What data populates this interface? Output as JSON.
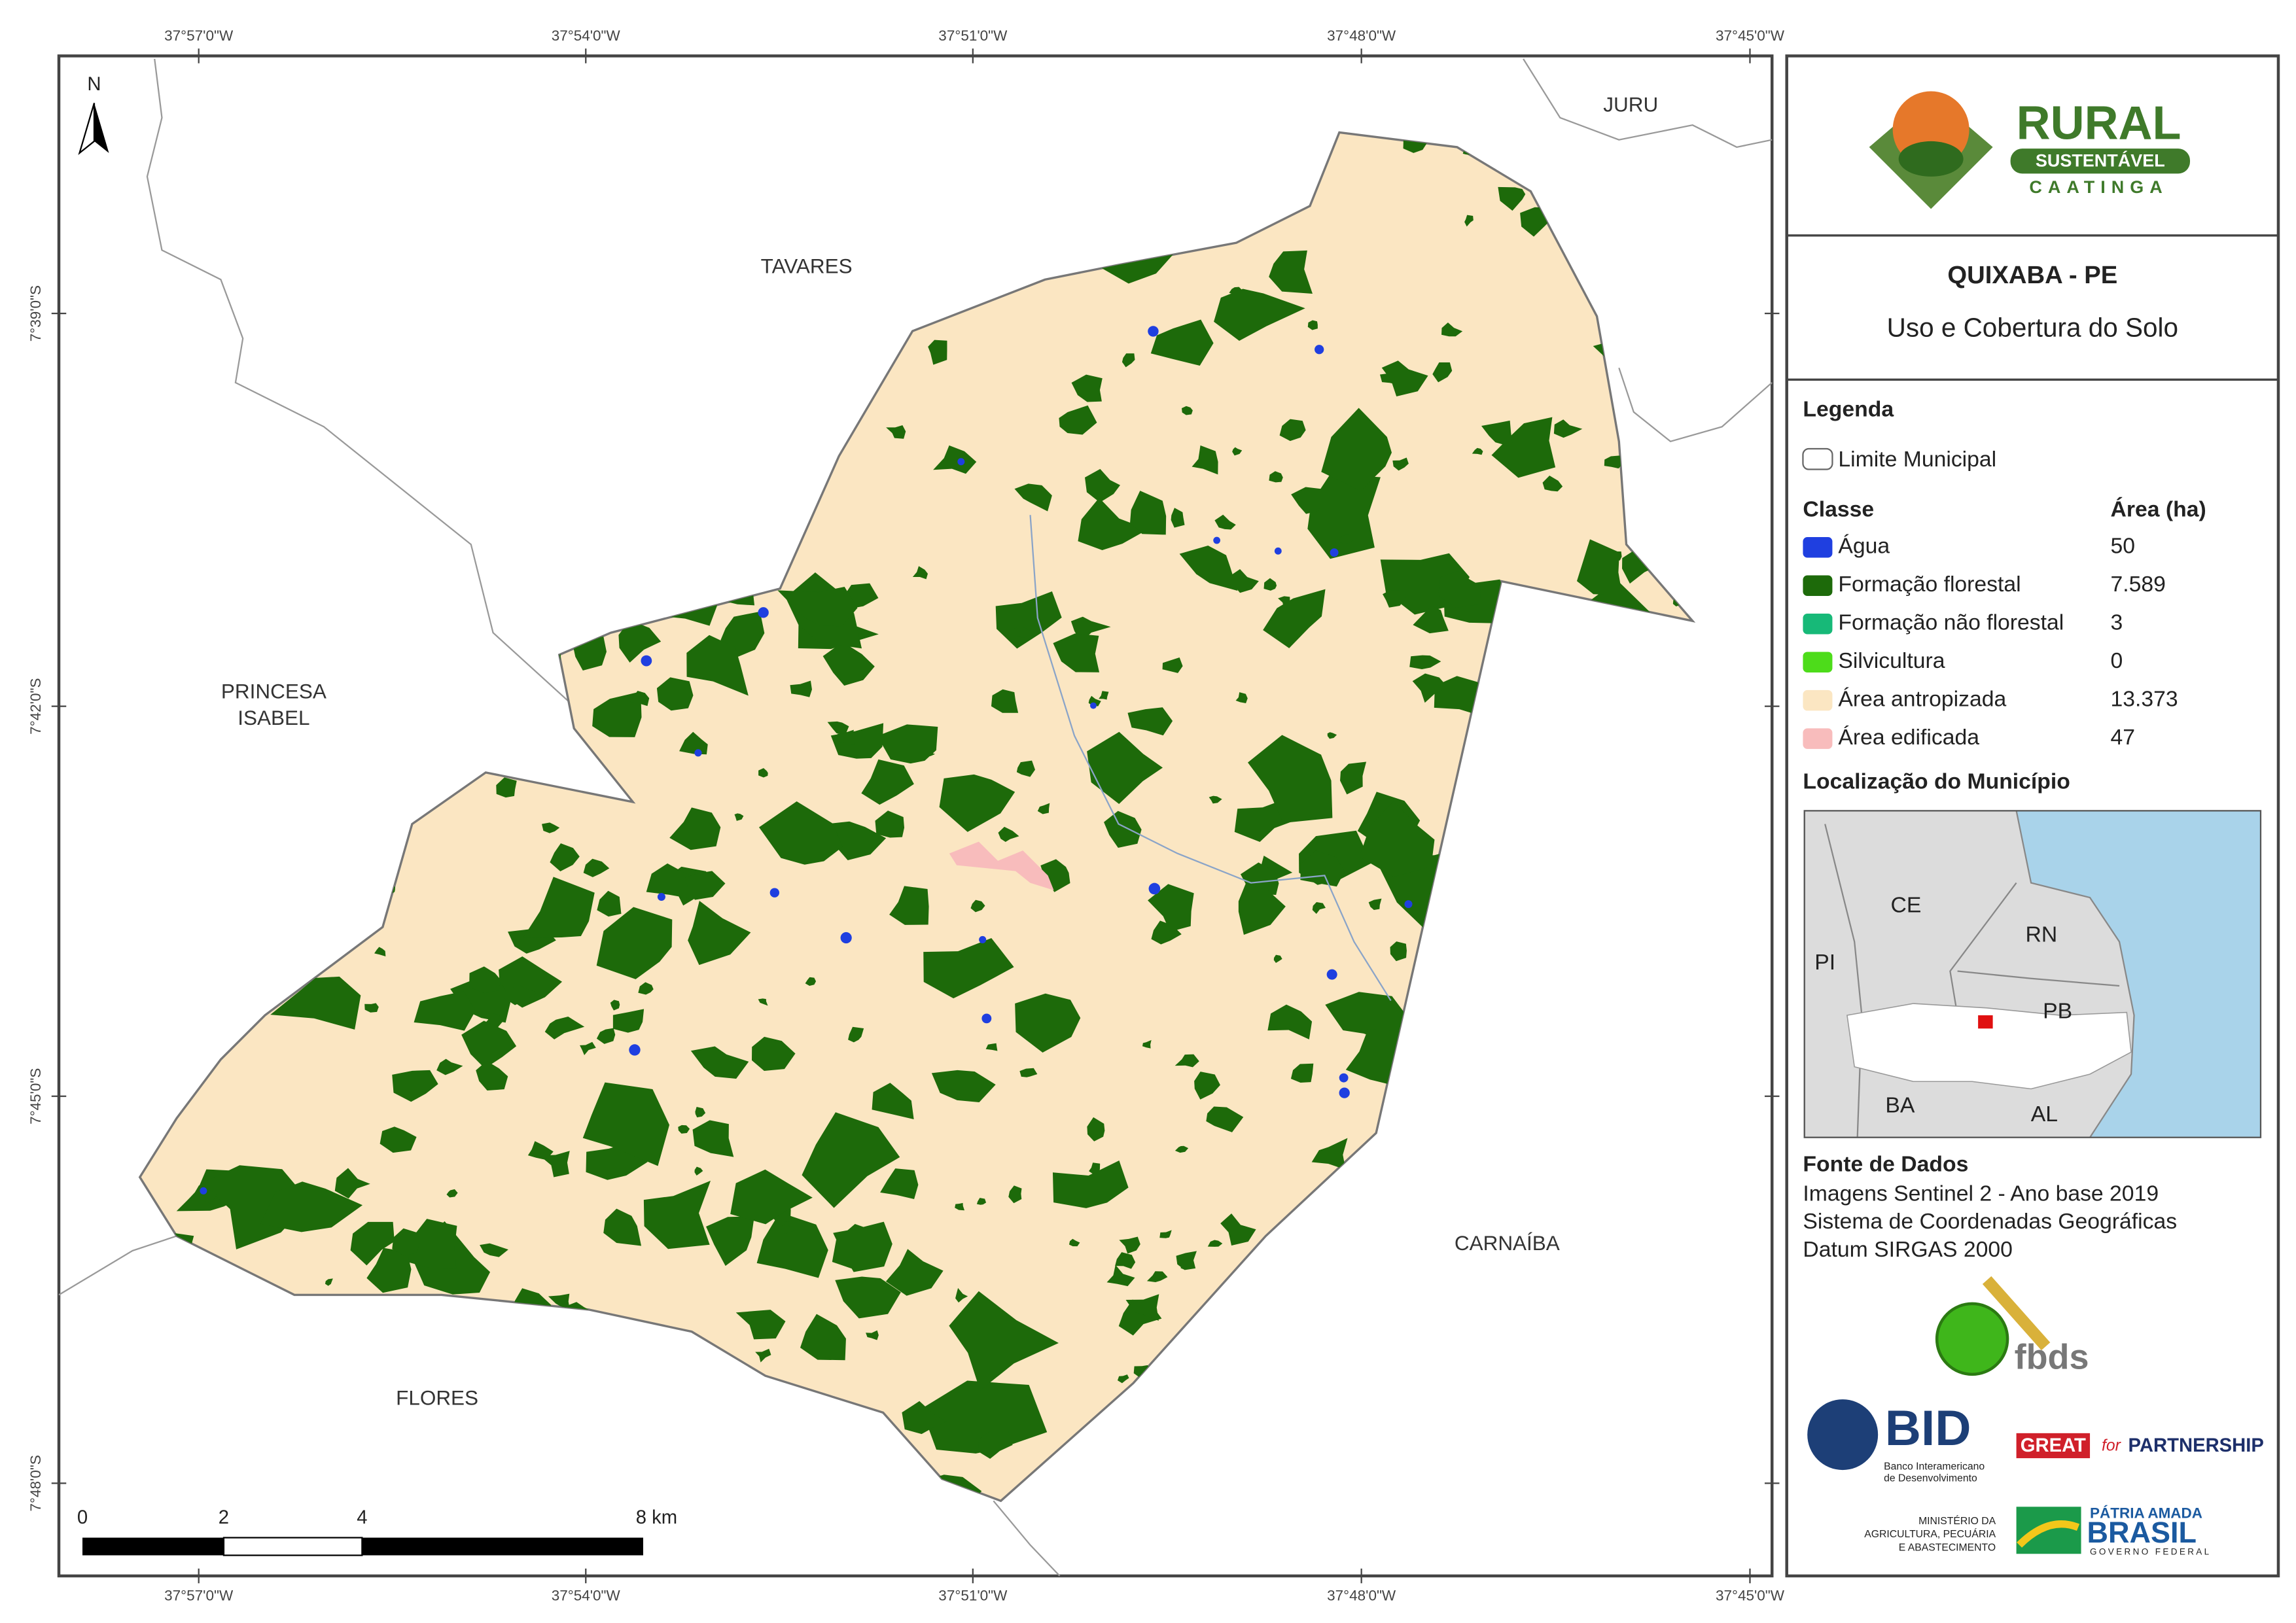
{
  "map": {
    "north": "N",
    "lon_ticks": [
      "37°57'0\"W",
      "37°54'0\"W",
      "37°51'0\"W",
      "37°48'0\"W",
      "37°45'0\"W"
    ],
    "lat_ticks": [
      "7°39'0\"S",
      "7°42'0\"S",
      "7°45'0\"S",
      "7°48'0\"S"
    ],
    "places": {
      "juru": "JURU",
      "tavares": "TAVARES",
      "princesa": [
        "PRINCESA",
        "ISABEL"
      ],
      "carnaiba": "CARNAÍBA",
      "flores": "FLORES"
    },
    "scale": [
      "0",
      "2",
      "4",
      "8 km"
    ]
  },
  "panel": {
    "logo": {
      "title": "RURAL",
      "subtitle": "SUSTENTÁVEL",
      "region": "CAATINGA"
    },
    "title": "QUIXABA - PE",
    "subtitle": "Uso e Cobertura do Solo",
    "legend": {
      "heading": "Legenda",
      "boundary": "Limite Municipal",
      "class_header": "Classe",
      "area_header": "Área (ha)",
      "classes": [
        {
          "name": "Água",
          "area": "50",
          "color": "#1f3fe0"
        },
        {
          "name": "Formação florestal",
          "area": "7.589",
          "color": "#1d6a0a"
        },
        {
          "name": "Formação não florestal",
          "area": "3",
          "color": "#17b978"
        },
        {
          "name": "Silvicultura",
          "area": "0",
          "color": "#4ddc1a"
        },
        {
          "name": "Área antropizada",
          "area": "13.373",
          "color": "#fbe6c2"
        },
        {
          "name": "Área edificada",
          "area": "47",
          "color": "#f8bcbc"
        }
      ]
    },
    "location": {
      "heading": "Localização do Município",
      "states": [
        "CE",
        "RN",
        "PI",
        "PB",
        "BA",
        "AL"
      ]
    },
    "sources": {
      "heading": "Fonte de Dados",
      "lines": [
        "Imagens Sentinel 2 - Ano base 2019",
        "Sistema de Coordenadas Geográficas",
        "Datum SIRGAS 2000"
      ]
    },
    "logos": {
      "fbds": "fbds",
      "bid": "BID",
      "bid_name": [
        "Banco Interamericano",
        "de Desenvolvimento"
      ],
      "great": "GREAT",
      "for": "for",
      "partnership": "PARTNERSHIP",
      "ministry": [
        "MINISTÉRIO DA",
        "AGRICULTURA, PECUÁRIA",
        "E ABASTECIMENTO"
      ],
      "patria": "PÁTRIA AMADA",
      "brasil": "BRASIL",
      "governo": "GOVERNO FEDERAL"
    }
  }
}
